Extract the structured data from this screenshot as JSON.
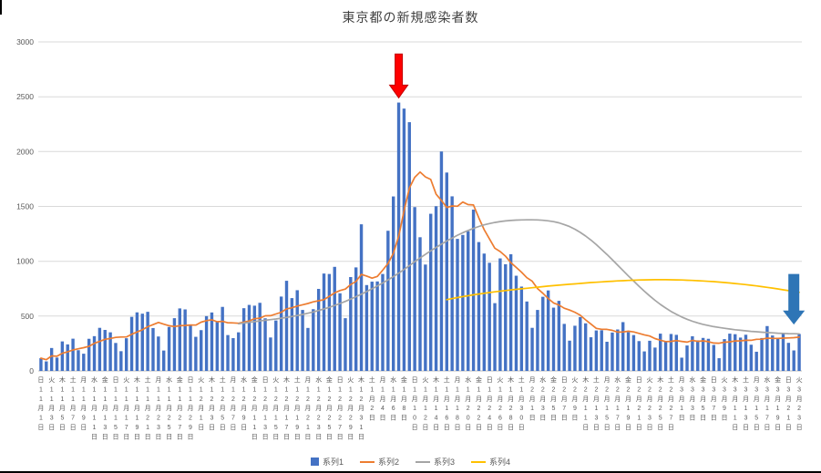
{
  "chart_data": {
    "type": "bar",
    "title": "東京都の新規感染者数",
    "ylim": [
      0,
      3000
    ],
    "yticks": [
      0,
      500,
      1000,
      1500,
      2000,
      2500,
      3000
    ],
    "grid": true,
    "legend_position": "bottom",
    "weekday_chars": [
      "日",
      "月",
      "火",
      "水",
      "木",
      "金",
      "土"
    ],
    "categories": [
      "11/1",
      "11/2",
      "11/3",
      "11/4",
      "11/5",
      "11/6",
      "11/7",
      "11/8",
      "11/9",
      "11/10",
      "11/11",
      "11/12",
      "11/13",
      "11/14",
      "11/15",
      "11/16",
      "11/17",
      "11/18",
      "11/19",
      "11/20",
      "11/21",
      "11/22",
      "11/23",
      "11/24",
      "11/25",
      "11/26",
      "11/27",
      "11/28",
      "11/29",
      "11/30",
      "12/1",
      "12/2",
      "12/3",
      "12/4",
      "12/5",
      "12/6",
      "12/7",
      "12/8",
      "12/9",
      "12/10",
      "12/11",
      "12/12",
      "12/13",
      "12/14",
      "12/15",
      "12/16",
      "12/17",
      "12/18",
      "12/19",
      "12/20",
      "12/21",
      "12/22",
      "12/23",
      "12/24",
      "12/25",
      "12/26",
      "12/27",
      "12/28",
      "12/29",
      "12/30",
      "12/31",
      "1/1",
      "1/2",
      "1/3",
      "1/4",
      "1/5",
      "1/6",
      "1/7",
      "1/8",
      "1/9",
      "1/10",
      "1/11",
      "1/12",
      "1/13",
      "1/14",
      "1/15",
      "1/16",
      "1/17",
      "1/18",
      "1/19",
      "1/20",
      "1/21",
      "1/22",
      "1/23",
      "1/24",
      "1/25",
      "1/26",
      "1/27",
      "1/28",
      "1/29",
      "1/30",
      "1/31",
      "2/1",
      "2/2",
      "2/3",
      "2/4",
      "2/5",
      "2/6",
      "2/7",
      "2/8",
      "2/9",
      "2/10",
      "2/11",
      "2/12",
      "2/13",
      "2/14",
      "2/15",
      "2/16",
      "2/17",
      "2/18",
      "2/19",
      "2/20",
      "2/21",
      "2/22",
      "2/23",
      "2/24",
      "2/25",
      "2/26",
      "2/27",
      "2/28",
      "3/1",
      "3/2",
      "3/3",
      "3/4",
      "3/5",
      "3/6",
      "3/7",
      "3/8",
      "3/9",
      "3/10",
      "3/11",
      "3/12",
      "3/13",
      "3/14",
      "3/15",
      "3/16",
      "3/17",
      "3/18",
      "3/19",
      "3/20",
      "3/21",
      "3/22",
      "3/23"
    ],
    "series": [
      {
        "name": "系列1",
        "type": "bar",
        "color": "#4472C4",
        "start": 0,
        "values": [
          116,
          87,
          209,
          122,
          269,
          242,
          294,
          189,
          157,
          293,
          317,
          393,
          374,
          352,
          255,
          180,
          298,
          493,
          534,
          522,
          539,
          391,
          314,
          186,
          401,
          481,
          570,
          561,
          418,
          311,
          372,
          500,
          533,
          449,
          584,
          327,
          299,
          352,
          572,
          602,
          595,
          621,
          480,
          305,
          460,
          678,
          822,
          664,
          736,
          556,
          392,
          563,
          748,
          888,
          884,
          949,
          708,
          481,
          856,
          944,
          1337,
          783,
          814,
          816,
          884,
          1278,
          1591,
          2447,
          2392,
          2268,
          1494,
          1219,
          970,
          1433,
          1502,
          2001,
          1809,
          1592,
          1204,
          1240,
          1274,
          1471,
          1175,
          1070,
          986,
          618,
          1026,
          973,
          1064,
          868,
          769,
          633,
          393,
          556,
          676,
          734,
          577,
          639,
          429,
          276,
          412,
          491,
          434,
          307,
          369,
          371,
          266,
          350,
          378,
          445,
          353,
          327,
          272,
          178,
          275,
          213,
          340,
          270,
          337,
          329,
          121,
          232,
          316,
          279,
          301,
          293,
          237,
          116,
          290,
          340,
          335,
          304,
          330,
          239,
          175,
          300,
          409,
          323,
          303,
          342,
          256,
          187,
          337
        ]
      },
      {
        "name": "系列2",
        "type": "line",
        "color": "#ED7D31",
        "start": 0,
        "values": [
          116,
          102,
          137,
          134,
          161,
          174,
          191,
          202,
          212,
          224,
          252,
          269,
          288,
          296,
          306,
          309,
          310,
          335,
          355,
          376,
          403,
          422,
          442,
          426,
          412,
          405,
          412,
          415,
          419,
          418,
          445,
          459,
          466,
          449,
          452,
          439,
          438,
          435,
          445,
          455,
          476,
          481,
          503,
          504,
          519,
          534,
          566,
          576,
          592,
          603,
          615,
          630,
          640,
          650,
          681,
          711,
          733,
          746,
          788,
          816,
          880,
          865,
          846,
          862,
          919,
          979,
          1072,
          1230,
          1460,
          1668,
          1765,
          1813,
          1769,
          1746,
          1611,
          1555,
          1490,
          1504,
          1502,
          1540,
          1517,
          1513,
          1395,
          1289,
          1203,
          1119,
          1089,
          1046,
          987,
          944,
          901,
          850,
          818,
          751,
          708,
          661,
          620,
          601,
          572,
          555,
          535,
          508,
          465,
          427,
          388,
          380,
          379,
          370,
          354,
          355,
          362,
          356,
          342,
          329,
          318,
          295,
          280,
          268,
          269,
          277,
          269,
          263,
          278,
          269,
          274,
          267,
          254,
          253,
          262,
          265,
          273,
          274,
          279,
          279,
          288,
          289,
          299,
          297,
          297,
          299,
          301,
          303,
          308
        ]
      },
      {
        "name": "系列3",
        "type": "line",
        "color": "#A5A5A5",
        "start": 37,
        "values": [
          430,
          437,
          444,
          450,
          456,
          462,
          468,
          474,
          481,
          488,
          496,
          505,
          515,
          526,
          538,
          551,
          565,
          580,
          597,
          615,
          634,
          655,
          677,
          700,
          724,
          749,
          775,
          802,
          830,
          860,
          892,
          925,
          960,
          996,
          1030,
          1063,
          1095,
          1126,
          1156,
          1185,
          1212,
          1237,
          1260,
          1281,
          1300,
          1317,
          1332,
          1344,
          1354,
          1362,
          1368,
          1372,
          1375,
          1377,
          1378,
          1378,
          1377,
          1374,
          1369,
          1361,
          1350,
          1335,
          1316,
          1292,
          1263,
          1230,
          1193,
          1152,
          1108,
          1062,
          1014,
          965,
          916,
          867,
          819,
          772,
          727,
          684,
          644,
          607,
          573,
          543,
          516,
          492,
          471,
          453,
          438,
          425,
          414,
          404,
          396,
          389,
          382,
          376,
          371,
          366,
          361,
          357,
          353,
          350,
          347,
          344,
          342,
          340,
          339,
          338
        ]
      },
      {
        "name": "系列4",
        "type": "line",
        "color": "#FFC000",
        "start": 76,
        "values": [
          650,
          660,
          669,
          678,
          686,
          694,
          701,
          708,
          715,
          721,
          727,
          733,
          739,
          744,
          749,
          754,
          759,
          764,
          769,
          774,
          778,
          782,
          786,
          790,
          794,
          798,
          802,
          806,
          809,
          812,
          815,
          818,
          821,
          823,
          825,
          827,
          829,
          830,
          831,
          832,
          832,
          832,
          831,
          830,
          829,
          827,
          825,
          823,
          820,
          817,
          814,
          810,
          806,
          802,
          797,
          792,
          787,
          781,
          775,
          769,
          762,
          755,
          748,
          740,
          732,
          724,
          716
        ]
      }
    ],
    "annotations": [
      {
        "name": "red-down-arrow",
        "category_index": 67,
        "tip_value": 2490,
        "top_value": 2890,
        "fill": "#FF0000",
        "stroke": "#C00000",
        "shaft_width": 8,
        "head_width": 20,
        "head_height": 14
      },
      {
        "name": "blue-down-arrow",
        "category_index": 141,
        "tip_value": 430,
        "top_value": 880,
        "fill": "#2E75B6",
        "stroke": "#2E75B6",
        "shaft_width": 11,
        "head_width": 22,
        "head_height": 14
      }
    ],
    "colors": {
      "grid": "#D9D9D9",
      "axis_line": "#BFBFBF",
      "axis_text": "#595959",
      "title_text": "#404040",
      "background": "#FFFFFF"
    }
  }
}
